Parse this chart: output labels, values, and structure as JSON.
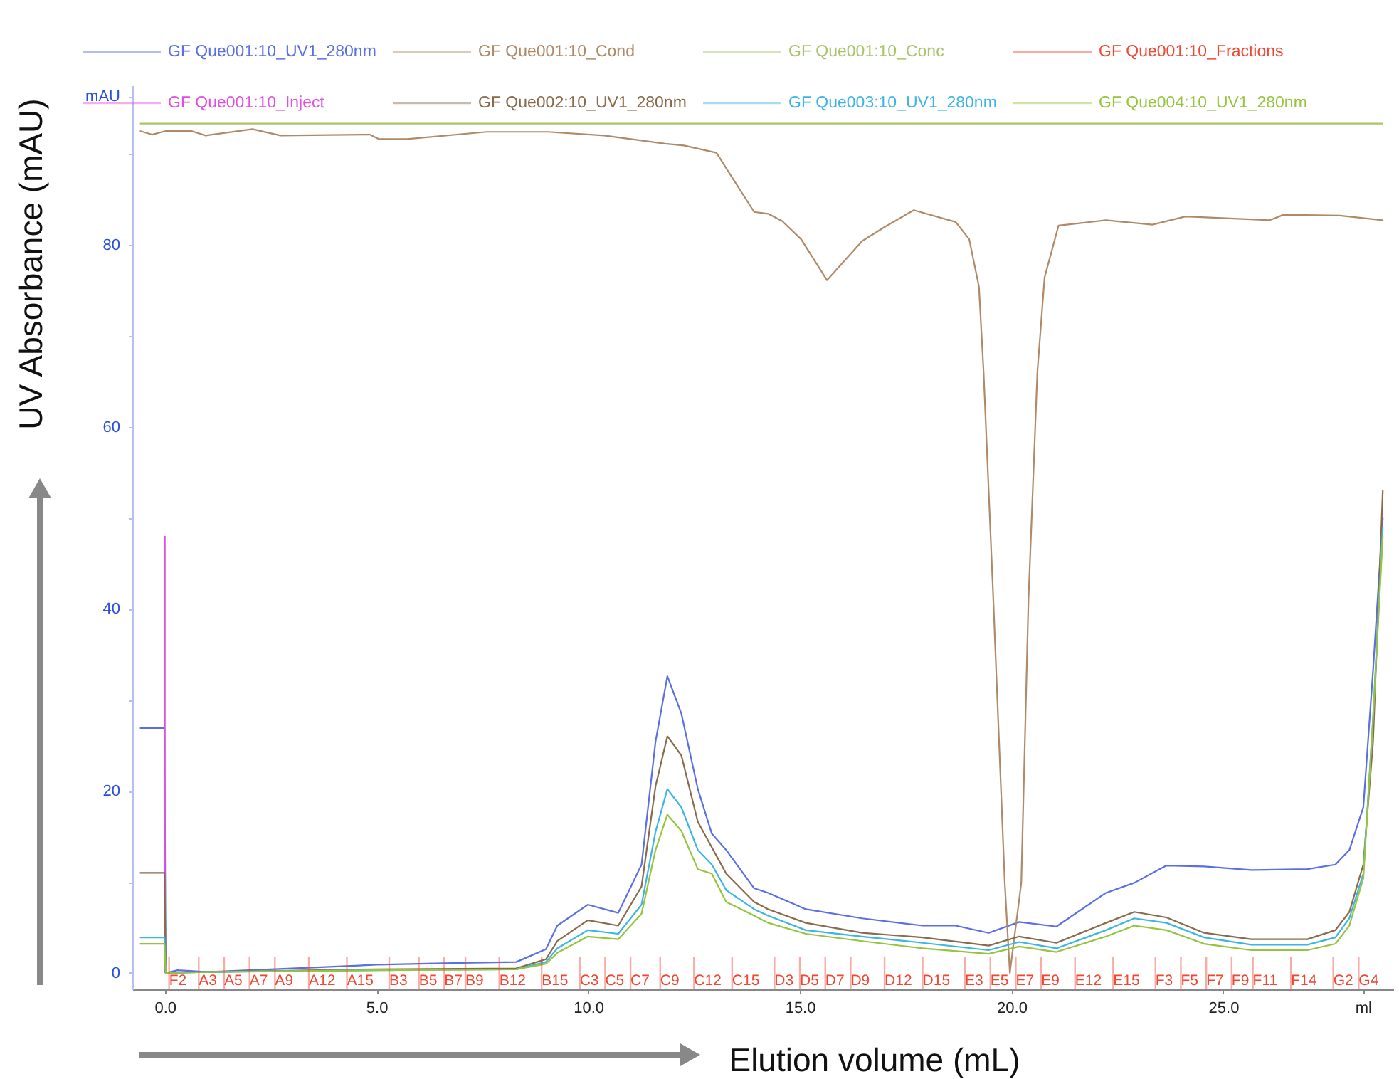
{
  "chart_data": {
    "type": "line",
    "xlabel": "Elution volume (mL)",
    "ylabel": "UV Absorbance (mAU)",
    "xlim": [
      -0.6,
      28.85
    ],
    "ylim": [
      -1.8,
      97.5
    ],
    "xticks": [
      {
        "value": 0,
        "label": "0.0"
      },
      {
        "value": 5,
        "label": "5.0"
      },
      {
        "value": 10,
        "label": "10.0"
      },
      {
        "value": 15,
        "label": "15.0"
      },
      {
        "value": 20,
        "label": "20.0"
      },
      {
        "value": 25,
        "label": "25.0"
      },
      {
        "value": 28.3,
        "label": "ml"
      }
    ],
    "yticks": [
      0,
      {
        "value": 10,
        "label": null
      },
      20,
      {
        "value": 30,
        "label": null
      },
      40,
      {
        "value": 50,
        "label": null
      },
      60,
      {
        "value": 70,
        "label": null
      },
      80,
      {
        "value": 90,
        "label": null
      },
      {
        "value": 96.3,
        "label": "mAU"
      }
    ],
    "legend": "top",
    "series": [
      {
        "name": "GF Que001:10_UV1_280nm",
        "color": "#5a6ee6",
        "x": [
          -0.59,
          -0.01,
          0.02,
          0.3,
          1,
          3,
          5,
          7,
          8.3,
          9.0,
          9.27,
          9.99,
          10.71,
          11.26,
          11.59,
          11.87,
          12.2,
          12.59,
          12.92,
          13.26,
          13.92,
          14.25,
          15.14,
          16.47,
          17.9,
          18.68,
          19.46,
          20.18,
          21.06,
          22.23,
          22.9,
          23.66,
          24.55,
          25.66,
          26.99,
          27.65,
          27.98,
          28.31,
          28.54,
          28.77
        ],
        "values": [
          26.9,
          26.9,
          0,
          0.3,
          0.1,
          0.5,
          0.9,
          1.1,
          1.2,
          2.6,
          5.2,
          7.5,
          6.6,
          11.9,
          25.4,
          32.6,
          28.5,
          20.2,
          15.3,
          13.5,
          9.3,
          8.8,
          7.0,
          6.0,
          5.2,
          5.2,
          4.4,
          5.6,
          5.1,
          8.8,
          9.9,
          11.8,
          11.7,
          11.3,
          11.4,
          11.9,
          13.5,
          18.2,
          33.2,
          50
        ]
      },
      {
        "name": "GF Que001:10_Cond",
        "color": "#b08a68",
        "x": [
          -0.59,
          -0.3,
          0.02,
          0.63,
          0.96,
          2.07,
          2.73,
          4.84,
          5.06,
          5.72,
          7.6,
          9.05,
          10.38,
          11.82,
          12.26,
          13.03,
          13.26,
          13.92,
          14.25,
          14.58,
          15.03,
          15.64,
          16.47,
          17.02,
          17.69,
          18.68,
          19.0,
          19.23,
          19.34,
          19.57,
          19.84,
          19.96,
          20.23,
          20.4,
          20.61,
          20.78,
          21.11,
          22.23,
          23.33,
          24.11,
          26.1,
          26.43,
          27.76,
          28.77
        ],
        "values": [
          92.5,
          92.1,
          92.5,
          92.5,
          92.0,
          92.7,
          92.0,
          92.1,
          91.6,
          91.6,
          92.4,
          92.4,
          92.0,
          91.1,
          90.9,
          90.1,
          88.4,
          83.6,
          83.4,
          82.6,
          80.6,
          76.1,
          80.4,
          82.0,
          83.8,
          82.5,
          80.6,
          75.4,
          66,
          41,
          9.9,
          0,
          9.9,
          41,
          66,
          76.4,
          82.1,
          82.7,
          82.2,
          83.1,
          82.7,
          83.3,
          83.2,
          82.7
        ]
      },
      {
        "name": "GF Que001:10_Conc",
        "color": "#a8c46a",
        "x": [
          -0.59,
          28.77
        ],
        "values": [
          93.3,
          93.3
        ]
      },
      {
        "name": "GF Que001:10_Fractions",
        "color": "#f04632",
        "type": "bar",
        "base": [
          -1.8,
          -1.8,
          -1.8,
          -1.8,
          -1.8,
          -1.8,
          -1.8,
          -1.8,
          -1.8,
          -1.8,
          -1.8,
          -1.8,
          -1.8,
          -1.8,
          -1.8,
          -1.8,
          -1.8,
          -1.8,
          -1.8,
          -1.8,
          -1.8,
          -1.8,
          -1.8,
          -1.8,
          -1.8,
          -1.8,
          -1.8,
          -1.8,
          -1.8,
          -1.8,
          -1.8,
          -1.8,
          -1.8,
          -1.8,
          -1.8,
          -1.8,
          -1.8,
          -1.8,
          -1.8
        ],
        "x": [
          0.1,
          0.8,
          1.4,
          2.0,
          2.6,
          3.4,
          4.3,
          5.3,
          6.0,
          6.6,
          7.1,
          7.9,
          8.9,
          9.8,
          10.4,
          11.0,
          11.7,
          12.5,
          13.4,
          14.4,
          15.0,
          15.6,
          16.2,
          17.0,
          17.9,
          18.9,
          19.5,
          20.1,
          20.7,
          21.5,
          22.4,
          23.4,
          24.0,
          24.6,
          25.2,
          25.7,
          26.6,
          27.6,
          28.2
        ],
        "values": [
          3.6,
          3.6,
          3.6,
          3.6,
          3.6,
          3.6,
          3.6,
          3.6,
          3.6,
          3.6,
          3.6,
          3.6,
          3.6,
          3.6,
          3.6,
          3.6,
          3.6,
          3.6,
          3.6,
          3.6,
          3.6,
          3.6,
          3.6,
          3.6,
          3.6,
          3.6,
          3.6,
          3.6,
          3.6,
          3.6,
          3.6,
          3.6,
          3.6,
          3.6,
          3.6,
          3.6,
          3.6,
          3.6,
          3.6
        ],
        "value_labels": [
          "F2",
          "A3",
          "A5",
          "A7",
          "A9",
          "A12",
          "A15",
          "B3",
          "B5",
          "B7",
          "B9",
          "B12",
          "B15",
          "C3",
          "C5",
          "C7",
          "C9",
          "C12",
          "C15",
          "D3",
          "D5",
          "D7",
          "D9",
          "D12",
          "D15",
          "E3",
          "E5",
          "E7",
          "E9",
          "E12",
          "E15",
          "F3",
          "F5",
          "F7",
          "F9",
          "F11",
          "F14",
          "G2",
          "G4"
        ]
      },
      {
        "name": "GF Que001:10_Inject",
        "color": "#e050e0",
        "x": [
          0,
          0
        ],
        "values": [
          0,
          48
        ]
      },
      {
        "name": "GF Que002:10_UV1_280nm",
        "color": "#8a6a4a",
        "x": [
          -0.59,
          -0.01,
          0.02,
          1,
          5,
          8.3,
          9.0,
          9.27,
          9.99,
          10.71,
          11.26,
          11.59,
          11.87,
          12.2,
          12.59,
          12.92,
          13.26,
          13.92,
          14.25,
          15.14,
          16.47,
          17.9,
          19.46,
          20.18,
          21.06,
          22.23,
          22.9,
          23.66,
          24.55,
          25.66,
          26.99,
          27.65,
          27.98,
          28.31,
          28.54,
          28.77
        ],
        "values": [
          11.0,
          11.0,
          0,
          0.1,
          0.4,
          0.5,
          1.5,
          3.5,
          5.8,
          5.2,
          9.5,
          20.5,
          26.0,
          23.9,
          16.6,
          13.8,
          10.9,
          7.8,
          7.0,
          5.5,
          4.4,
          3.9,
          3.0,
          4.0,
          3.3,
          5.5,
          6.7,
          6.1,
          4.4,
          3.7,
          3.7,
          4.7,
          6.7,
          11.9,
          25.4,
          53
        ]
      },
      {
        "name": "GF Que003:10_UV1_280nm",
        "color": "#3cb4e6",
        "x": [
          -0.59,
          -0.01,
          0.02,
          1,
          5,
          8.3,
          9.0,
          9.27,
          9.99,
          10.71,
          11.26,
          11.59,
          11.87,
          12.2,
          12.59,
          12.92,
          13.26,
          13.92,
          14.25,
          15.14,
          16.47,
          17.9,
          19.46,
          20.18,
          21.06,
          22.23,
          22.9,
          23.66,
          24.55,
          25.66,
          26.99,
          27.65,
          27.98,
          28.31,
          28.54,
          28.77
        ],
        "values": [
          3.9,
          3.9,
          0,
          0.1,
          0.3,
          0.4,
          1.2,
          2.7,
          4.7,
          4.3,
          7.5,
          15.5,
          20.2,
          18.2,
          13.5,
          11.9,
          9.1,
          7.0,
          6.3,
          4.7,
          4.0,
          3.3,
          2.5,
          3.4,
          2.7,
          4.7,
          6.0,
          5.5,
          3.9,
          3.1,
          3.1,
          3.9,
          6.0,
          10.9,
          28,
          49
        ]
      },
      {
        "name": "GF Que004:10_UV1_280nm",
        "color": "#96c43c",
        "x": [
          -0.59,
          -0.01,
          0.02,
          1,
          5,
          8.3,
          9.0,
          9.27,
          9.99,
          10.71,
          11.26,
          11.59,
          11.87,
          12.2,
          12.59,
          12.92,
          13.26,
          13.92,
          14.25,
          15.14,
          16.47,
          17.9,
          19.46,
          20.18,
          21.06,
          22.23,
          22.9,
          23.66,
          24.55,
          25.66,
          26.99,
          27.65,
          27.98,
          28.31,
          28.54,
          28.77
        ],
        "values": [
          3.2,
          3.2,
          0,
          0.1,
          0.3,
          0.4,
          1.0,
          2.2,
          4.0,
          3.7,
          6.5,
          13.5,
          17.4,
          15.6,
          11.4,
          10.9,
          7.8,
          6.3,
          5.5,
          4.3,
          3.5,
          2.7,
          2.1,
          2.9,
          2.3,
          4.0,
          5.2,
          4.7,
          3.2,
          2.5,
          2.5,
          3.2,
          5.2,
          10.4,
          28,
          48
        ]
      }
    ]
  }
}
